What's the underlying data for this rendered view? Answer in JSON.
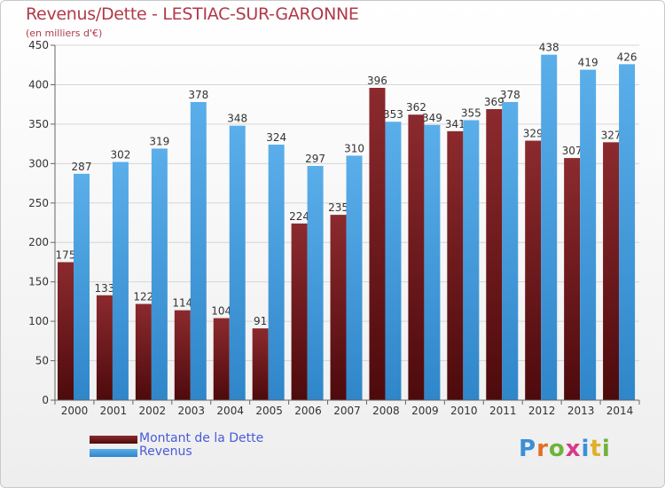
{
  "title": "Revenus/Dette - LESTIAC-SUR-GARONNE",
  "unit": "(en milliers d'€)",
  "logo": "Proxiti",
  "colors": {
    "title": "#b03a48",
    "legend_text": "#4a5bd8",
    "dette": "#7a1a1e",
    "revenus": "#3b9be0"
  },
  "chart_data": {
    "type": "bar",
    "categories": [
      "2000",
      "2001",
      "2002",
      "2003",
      "2004",
      "2005",
      "2006",
      "2007",
      "2008",
      "2009",
      "2010",
      "2011",
      "2012",
      "2013",
      "2014"
    ],
    "series": [
      {
        "name": "Montant de la Dette",
        "values": [
          175,
          133,
          122,
          114,
          104,
          91,
          224,
          235,
          396,
          362,
          341,
          369,
          329,
          307,
          327
        ]
      },
      {
        "name": "Revenus",
        "values": [
          287,
          302,
          319,
          378,
          348,
          324,
          297,
          310,
          353,
          349,
          355,
          378,
          438,
          419,
          426
        ]
      }
    ],
    "ylim": [
      0,
      450
    ],
    "yticks": [
      0,
      50,
      100,
      150,
      200,
      250,
      300,
      350,
      400,
      450
    ],
    "grid": true,
    "legend": "bottom-left"
  }
}
